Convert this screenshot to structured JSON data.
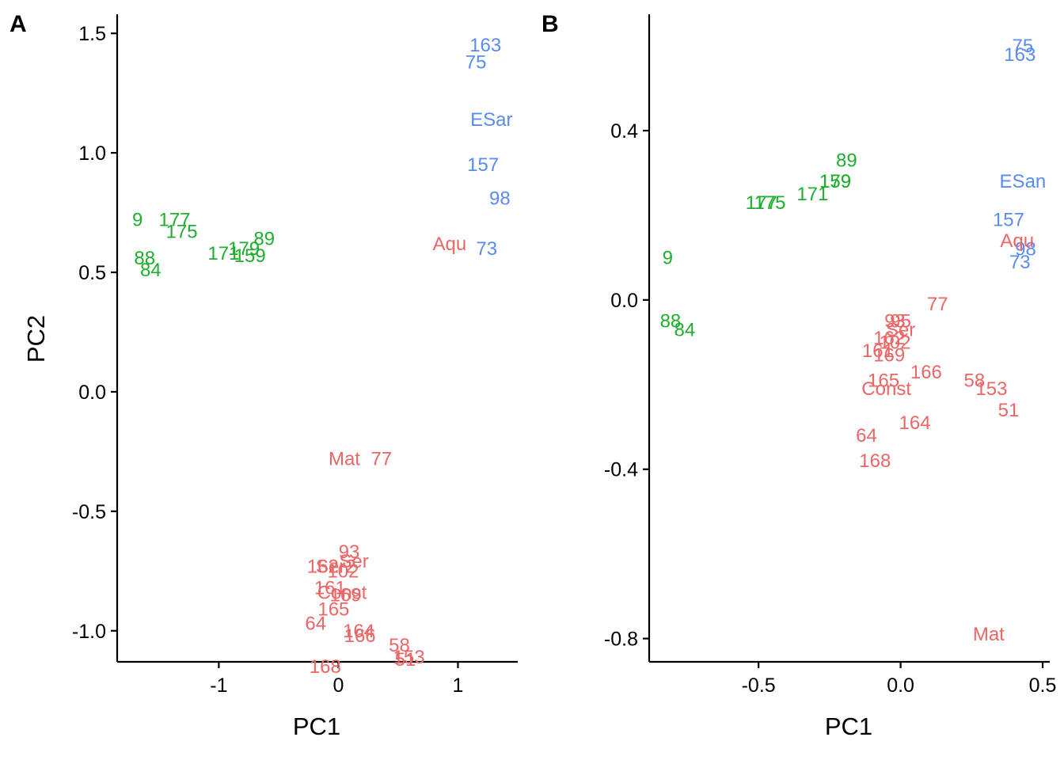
{
  "colors": {
    "red": "#EB6666",
    "green": "#1FAE2E",
    "blue": "#5A8CF0"
  },
  "chart_data": [
    {
      "type": "scatter",
      "panel": "A",
      "xlabel": "PC1",
      "ylabel": "PC2",
      "xlim": [
        -1.85,
        1.5
      ],
      "ylim": [
        -1.13,
        1.58
      ],
      "xticks": [
        -1,
        0,
        1
      ],
      "xtick_labels": [
        "-1",
        "0",
        "1"
      ],
      "yticks": [
        1.5,
        1.0,
        0.5,
        0.0,
        -0.5,
        -1.0
      ],
      "ytick_labels": [
        "1.5",
        "1.0",
        "0.5",
        "0.0",
        "-0.5",
        "-1.0"
      ],
      "points": [
        {
          "label": "163",
          "x": 1.23,
          "y": 1.45,
          "group": "blue"
        },
        {
          "label": "75",
          "x": 1.15,
          "y": 1.38,
          "group": "blue"
        },
        {
          "label": "ESar",
          "x": 1.28,
          "y": 1.14,
          "group": "blue"
        },
        {
          "label": "157",
          "x": 1.21,
          "y": 0.95,
          "group": "blue"
        },
        {
          "label": "98",
          "x": 1.35,
          "y": 0.81,
          "group": "blue"
        },
        {
          "label": "73",
          "x": 1.24,
          "y": 0.6,
          "group": "blue"
        },
        {
          "label": "Aqu",
          "x": 0.93,
          "y": 0.62,
          "group": "red"
        },
        {
          "label": "9",
          "x": -1.68,
          "y": 0.72,
          "group": "green"
        },
        {
          "label": "177",
          "x": -1.37,
          "y": 0.72,
          "group": "green"
        },
        {
          "label": "175",
          "x": -1.31,
          "y": 0.67,
          "group": "green"
        },
        {
          "label": "88",
          "x": -1.62,
          "y": 0.56,
          "group": "green"
        },
        {
          "label": "84",
          "x": -1.57,
          "y": 0.51,
          "group": "green"
        },
        {
          "label": "171",
          "x": -0.96,
          "y": 0.58,
          "group": "green"
        },
        {
          "label": "179",
          "x": -0.79,
          "y": 0.6,
          "group": "green"
        },
        {
          "label": "159",
          "x": -0.74,
          "y": 0.57,
          "group": "green"
        },
        {
          "label": "89",
          "x": -0.62,
          "y": 0.64,
          "group": "green"
        },
        {
          "label": "Mat",
          "x": 0.05,
          "y": -0.28,
          "group": "red"
        },
        {
          "label": "77",
          "x": 0.36,
          "y": -0.28,
          "group": "red"
        },
        {
          "label": "93",
          "x": 0.09,
          "y": -0.67,
          "group": "red"
        },
        {
          "label": "Ser",
          "x": 0.13,
          "y": -0.71,
          "group": "red"
        },
        {
          "label": "162",
          "x": -0.13,
          "y": -0.73,
          "group": "red"
        },
        {
          "label": "Ser2",
          "x": -0.02,
          "y": -0.73,
          "group": "red"
        },
        {
          "label": "102",
          "x": 0.04,
          "y": -0.75,
          "group": "red"
        },
        {
          "label": "161",
          "x": -0.07,
          "y": -0.82,
          "group": "red"
        },
        {
          "label": "Const",
          "x": 0.03,
          "y": -0.84,
          "group": "red"
        },
        {
          "label": "169",
          "x": 0.06,
          "y": -0.85,
          "group": "red"
        },
        {
          "label": "165",
          "x": -0.04,
          "y": -0.91,
          "group": "red"
        },
        {
          "label": "64",
          "x": -0.19,
          "y": -0.97,
          "group": "red"
        },
        {
          "label": "164",
          "x": 0.17,
          "y": -1.0,
          "group": "red"
        },
        {
          "label": "166",
          "x": 0.18,
          "y": -1.02,
          "group": "red"
        },
        {
          "label": "58",
          "x": 0.51,
          "y": -1.06,
          "group": "red"
        },
        {
          "label": "153",
          "x": 0.59,
          "y": -1.11,
          "group": "red"
        },
        {
          "label": "51",
          "x": 0.56,
          "y": -1.12,
          "group": "red"
        },
        {
          "label": "168",
          "x": -0.11,
          "y": -1.15,
          "group": "red"
        }
      ]
    },
    {
      "type": "scatter",
      "panel": "B",
      "xlabel": "PC1",
      "ylabel": "",
      "xlim": [
        -0.885,
        0.525
      ],
      "ylim": [
        -0.855,
        0.675
      ],
      "xticks": [
        -0.5,
        0.0,
        0.5
      ],
      "xtick_labels": [
        "-0.5",
        "0.0",
        "0.5"
      ],
      "yticks": [
        0.4,
        0.0,
        -0.4,
        -0.8
      ],
      "ytick_labels": [
        "0.4",
        "0.0",
        "-0.4",
        "-0.8"
      ],
      "points": [
        {
          "label": "75",
          "x": 0.43,
          "y": 0.6,
          "group": "blue"
        },
        {
          "label": "163",
          "x": 0.42,
          "y": 0.58,
          "group": "blue"
        },
        {
          "label": "ESan",
          "x": 0.43,
          "y": 0.28,
          "group": "blue"
        },
        {
          "label": "157",
          "x": 0.38,
          "y": 0.19,
          "group": "blue"
        },
        {
          "label": "98",
          "x": 0.44,
          "y": 0.12,
          "group": "blue"
        },
        {
          "label": "73",
          "x": 0.42,
          "y": 0.09,
          "group": "blue"
        },
        {
          "label": "Aqu",
          "x": 0.41,
          "y": 0.14,
          "group": "red"
        },
        {
          "label": "89",
          "x": -0.19,
          "y": 0.33,
          "group": "green"
        },
        {
          "label": "179",
          "x": -0.23,
          "y": 0.28,
          "group": "green"
        },
        {
          "label": "159",
          "x": -0.23,
          "y": 0.28,
          "group": "green"
        },
        {
          "label": "171",
          "x": -0.31,
          "y": 0.25,
          "group": "green"
        },
        {
          "label": "177",
          "x": -0.49,
          "y": 0.23,
          "group": "green"
        },
        {
          "label": "175",
          "x": -0.46,
          "y": 0.23,
          "group": "green"
        },
        {
          "label": "9",
          "x": -0.82,
          "y": 0.1,
          "group": "green"
        },
        {
          "label": "88",
          "x": -0.81,
          "y": -0.05,
          "group": "green"
        },
        {
          "label": "84",
          "x": -0.76,
          "y": -0.07,
          "group": "green"
        },
        {
          "label": "77",
          "x": 0.13,
          "y": -0.01,
          "group": "red"
        },
        {
          "label": "93",
          "x": -0.02,
          "y": -0.05,
          "group": "red"
        },
        {
          "label": "95",
          "x": 0.0,
          "y": -0.05,
          "group": "red"
        },
        {
          "label": "Ser",
          "x": 0.0,
          "y": -0.07,
          "group": "red"
        },
        {
          "label": "162",
          "x": -0.04,
          "y": -0.09,
          "group": "red"
        },
        {
          "label": "102",
          "x": -0.02,
          "y": -0.1,
          "group": "red"
        },
        {
          "label": "161",
          "x": -0.08,
          "y": -0.12,
          "group": "red"
        },
        {
          "label": "169",
          "x": -0.04,
          "y": -0.13,
          "group": "red"
        },
        {
          "label": "166",
          "x": 0.09,
          "y": -0.17,
          "group": "red"
        },
        {
          "label": "165",
          "x": -0.06,
          "y": -0.19,
          "group": "red"
        },
        {
          "label": "Const",
          "x": -0.05,
          "y": -0.21,
          "group": "red"
        },
        {
          "label": "58",
          "x": 0.26,
          "y": -0.19,
          "group": "red"
        },
        {
          "label": "153",
          "x": 0.32,
          "y": -0.21,
          "group": "red"
        },
        {
          "label": "51",
          "x": 0.38,
          "y": -0.26,
          "group": "red"
        },
        {
          "label": "164",
          "x": 0.05,
          "y": -0.29,
          "group": "red"
        },
        {
          "label": "64",
          "x": -0.12,
          "y": -0.32,
          "group": "red"
        },
        {
          "label": "168",
          "x": -0.09,
          "y": -0.38,
          "group": "red"
        },
        {
          "label": "Mat",
          "x": 0.31,
          "y": -0.79,
          "group": "red"
        }
      ]
    }
  ]
}
